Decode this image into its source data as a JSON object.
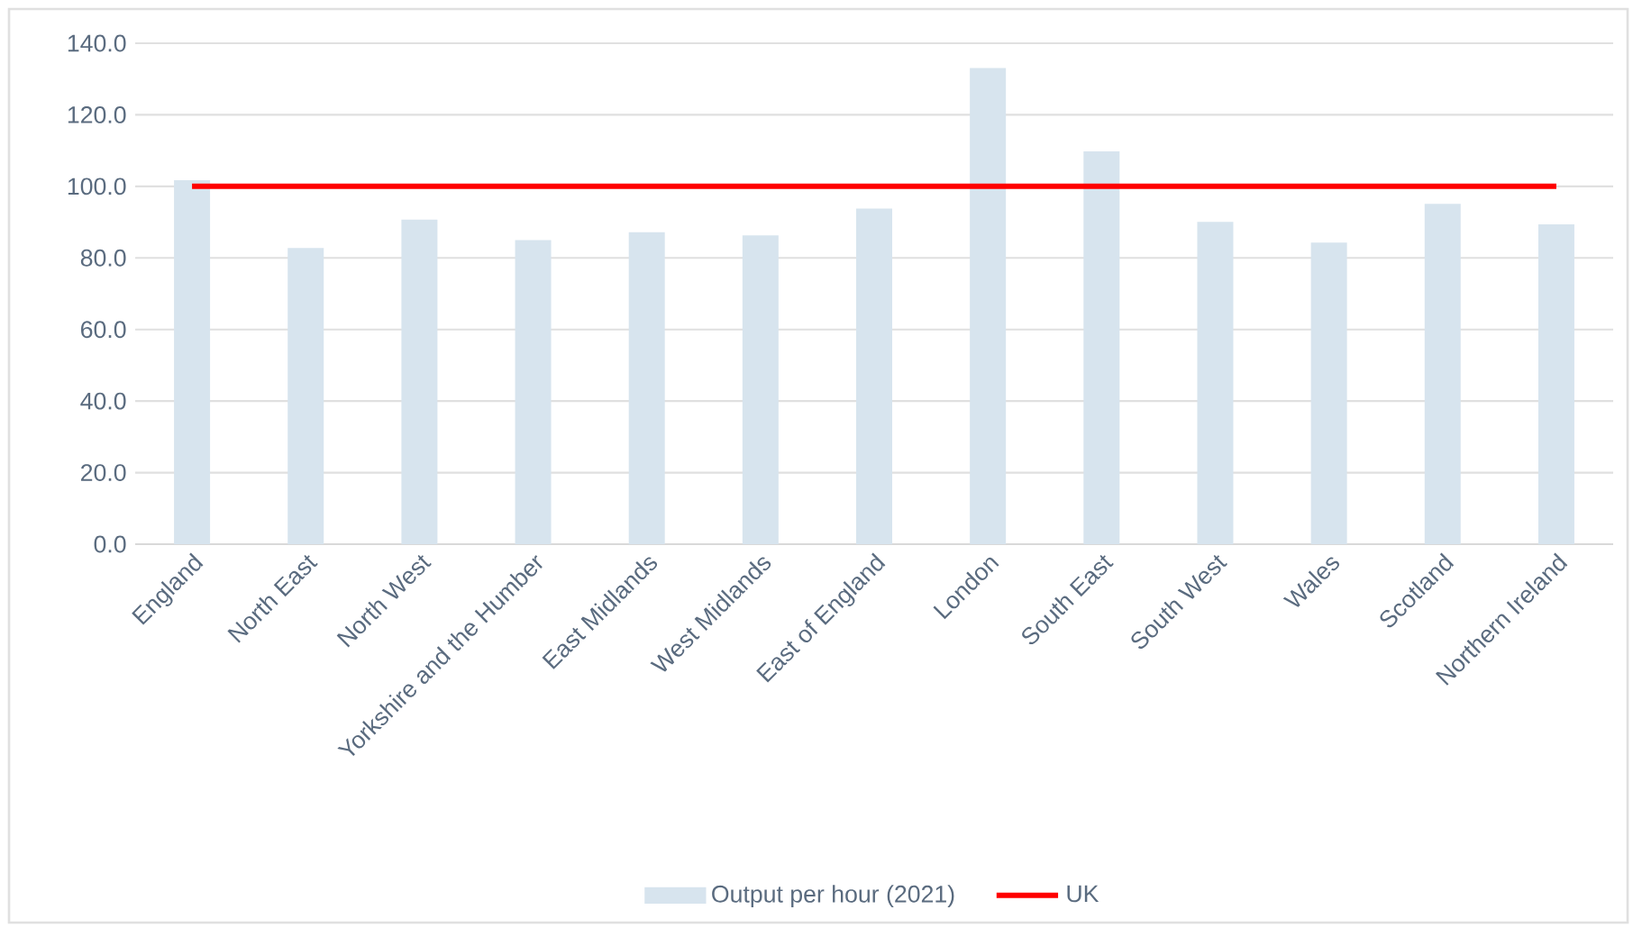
{
  "chart_data": {
    "type": "bar",
    "categories": [
      "England",
      "North East",
      "North West",
      "Yorkshire and the Humber",
      "East Midlands",
      "West Midlands",
      "East of England",
      "London",
      "South East",
      "South West",
      "Wales",
      "Scotland",
      "Northern Ireland"
    ],
    "series": [
      {
        "name": "Output per hour (2021)",
        "color": "#d7e4ee",
        "values": [
          101.7,
          82.8,
          90.7,
          85.0,
          87.2,
          86.3,
          93.8,
          133.1,
          109.8,
          90.1,
          84.3,
          95.1,
          89.4
        ]
      },
      {
        "name": "UK",
        "type": "line",
        "color": "#ff0000",
        "values": [
          100,
          100,
          100,
          100,
          100,
          100,
          100,
          100,
          100,
          100,
          100,
          100,
          100
        ]
      }
    ],
    "ylim": [
      0,
      140
    ],
    "yticks": [
      {
        "value": 0,
        "label": "0.0"
      },
      {
        "value": 20,
        "label": "20.0"
      },
      {
        "value": 40,
        "label": "40.0"
      },
      {
        "value": 60,
        "label": "60.0"
      },
      {
        "value": 80,
        "label": "80.0"
      },
      {
        "value": 100,
        "label": "100.0"
      },
      {
        "value": 120,
        "label": "120.0"
      },
      {
        "value": 140,
        "label": "140.0"
      }
    ],
    "grid": "y",
    "legend": "bottom",
    "marker": "none"
  }
}
